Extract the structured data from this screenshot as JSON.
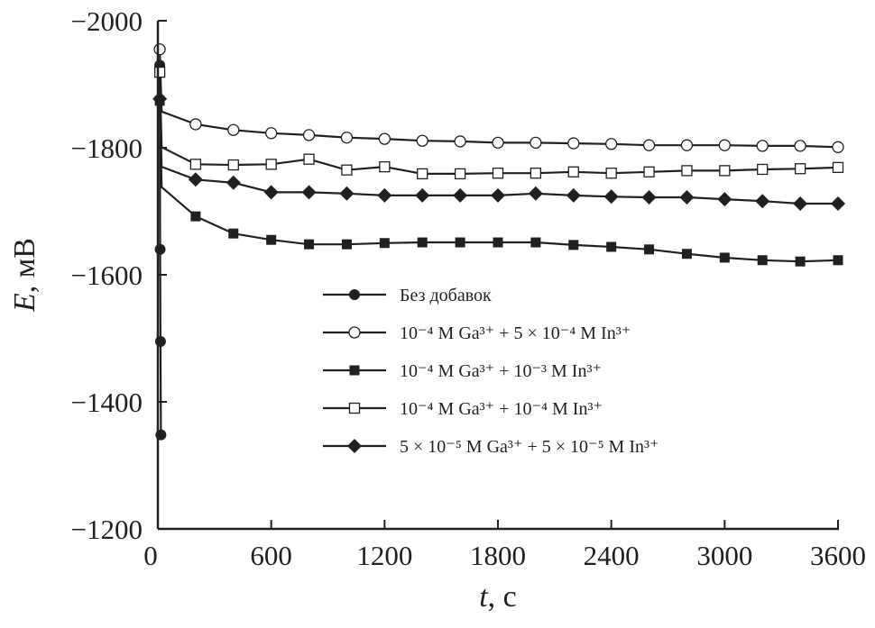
{
  "chart_data": {
    "type": "line",
    "title": "",
    "xlabel": {
      "var": "t",
      "unit": ", с"
    },
    "ylabel": {
      "var": "E",
      "unit": ", мВ"
    },
    "xlim": [
      0,
      3600
    ],
    "ylim": [
      -1200,
      -2000
    ],
    "xticks": [
      0,
      600,
      1200,
      1800,
      2400,
      3000,
      3600
    ],
    "xtick_labels": [
      "0",
      "600",
      "1200",
      "1800",
      "2400",
      "3000",
      "3600"
    ],
    "yticks": [
      -2000,
      -1800,
      -1600,
      -1400,
      -1200
    ],
    "ytick_labels": [
      "−2000",
      "−1800",
      "−1600",
      "−1400",
      "−1200"
    ],
    "grid": false,
    "legend_position": "center",
    "series": [
      {
        "name": "Без добавок",
        "marker": "filled-circle",
        "x": [
          10,
          12,
          14,
          16
        ],
        "y": [
          -1930,
          -1640,
          -1495,
          -1348
        ]
      },
      {
        "name": "10⁻⁴ М Ga³⁺ + 5 × 10⁻⁴ М In³⁺",
        "marker": "open-circle",
        "x": [
          10,
          20,
          200,
          400,
          600,
          800,
          1000,
          1200,
          1400,
          1600,
          1800,
          2000,
          2200,
          2400,
          2600,
          2800,
          3000,
          3200,
          3400,
          3600
        ],
        "y": [
          -1955,
          -1857,
          -1837,
          -1828,
          -1823,
          -1820,
          -1816,
          -1814,
          -1811,
          -1810,
          -1808,
          -1808,
          -1807,
          -1806,
          -1804,
          -1804,
          -1804,
          -1803,
          -1803,
          -1801
        ]
      },
      {
        "name": "10⁻⁴ М Ga³⁺ + 10⁻³ М In³⁺",
        "marker": "filled-square",
        "x": [
          10,
          20,
          200,
          400,
          600,
          800,
          1000,
          1200,
          1400,
          1600,
          1800,
          2000,
          2200,
          2400,
          2600,
          2800,
          3000,
          3200,
          3400,
          3600
        ],
        "y": [
          -1874,
          -1738,
          -1692,
          -1665,
          -1655,
          -1648,
          -1648,
          -1650,
          -1651,
          -1651,
          -1651,
          -1651,
          -1647,
          -1644,
          -1640,
          -1633,
          -1627,
          -1623,
          -1621,
          -1623
        ]
      },
      {
        "name": "10⁻⁴ М Ga³⁺ + 10⁻⁴ М In³⁺",
        "marker": "open-square",
        "x": [
          10,
          20,
          200,
          400,
          600,
          800,
          1000,
          1200,
          1400,
          1600,
          1800,
          2000,
          2200,
          2400,
          2600,
          2800,
          3000,
          3200,
          3400,
          3600
        ],
        "y": [
          -1919,
          -1801,
          -1774,
          -1773,
          -1774,
          -1782,
          -1765,
          -1770,
          -1759,
          -1759,
          -1760,
          -1760,
          -1762,
          -1760,
          -1762,
          -1764,
          -1764,
          -1766,
          -1767,
          -1769
        ]
      },
      {
        "name": "5 × 10⁻⁵ М Ga³⁺ + 5 × 10⁻⁵ М In³⁺",
        "marker": "filled-diamond",
        "x": [
          10,
          20,
          200,
          400,
          600,
          800,
          1000,
          1200,
          1400,
          1600,
          1800,
          2000,
          2200,
          2400,
          2600,
          2800,
          3000,
          3200,
          3400,
          3600
        ],
        "y": [
          -1877,
          -1770,
          -1750,
          -1745,
          -1730,
          -1730,
          -1728,
          -1725,
          -1725,
          -1725,
          -1725,
          -1728,
          -1725,
          -1723,
          -1722,
          -1722,
          -1719,
          -1716,
          -1712,
          -1712
        ]
      }
    ]
  }
}
